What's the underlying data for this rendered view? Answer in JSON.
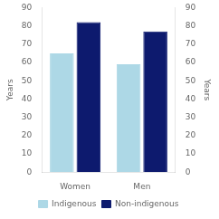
{
  "chart_data": {
    "type": "bar",
    "categories": [
      "Women",
      "Men"
    ],
    "series": [
      {
        "name": "Indigenous",
        "color": "#add8e6",
        "values": [
          65,
          59
        ]
      },
      {
        "name": "Non-indigenous",
        "color": "#0d1a6e",
        "values": [
          82,
          77
        ]
      }
    ],
    "ylabel": "Years",
    "y2label": "Years",
    "ylim": [
      0,
      90
    ],
    "yticks": [
      0,
      10,
      20,
      30,
      40,
      50,
      60,
      70,
      80,
      90
    ],
    "y2lim": [
      0,
      90
    ],
    "y2ticks": [
      0,
      10,
      20,
      30,
      40,
      50,
      60,
      70,
      80,
      90
    ],
    "grid": false,
    "legend": "bottom"
  }
}
